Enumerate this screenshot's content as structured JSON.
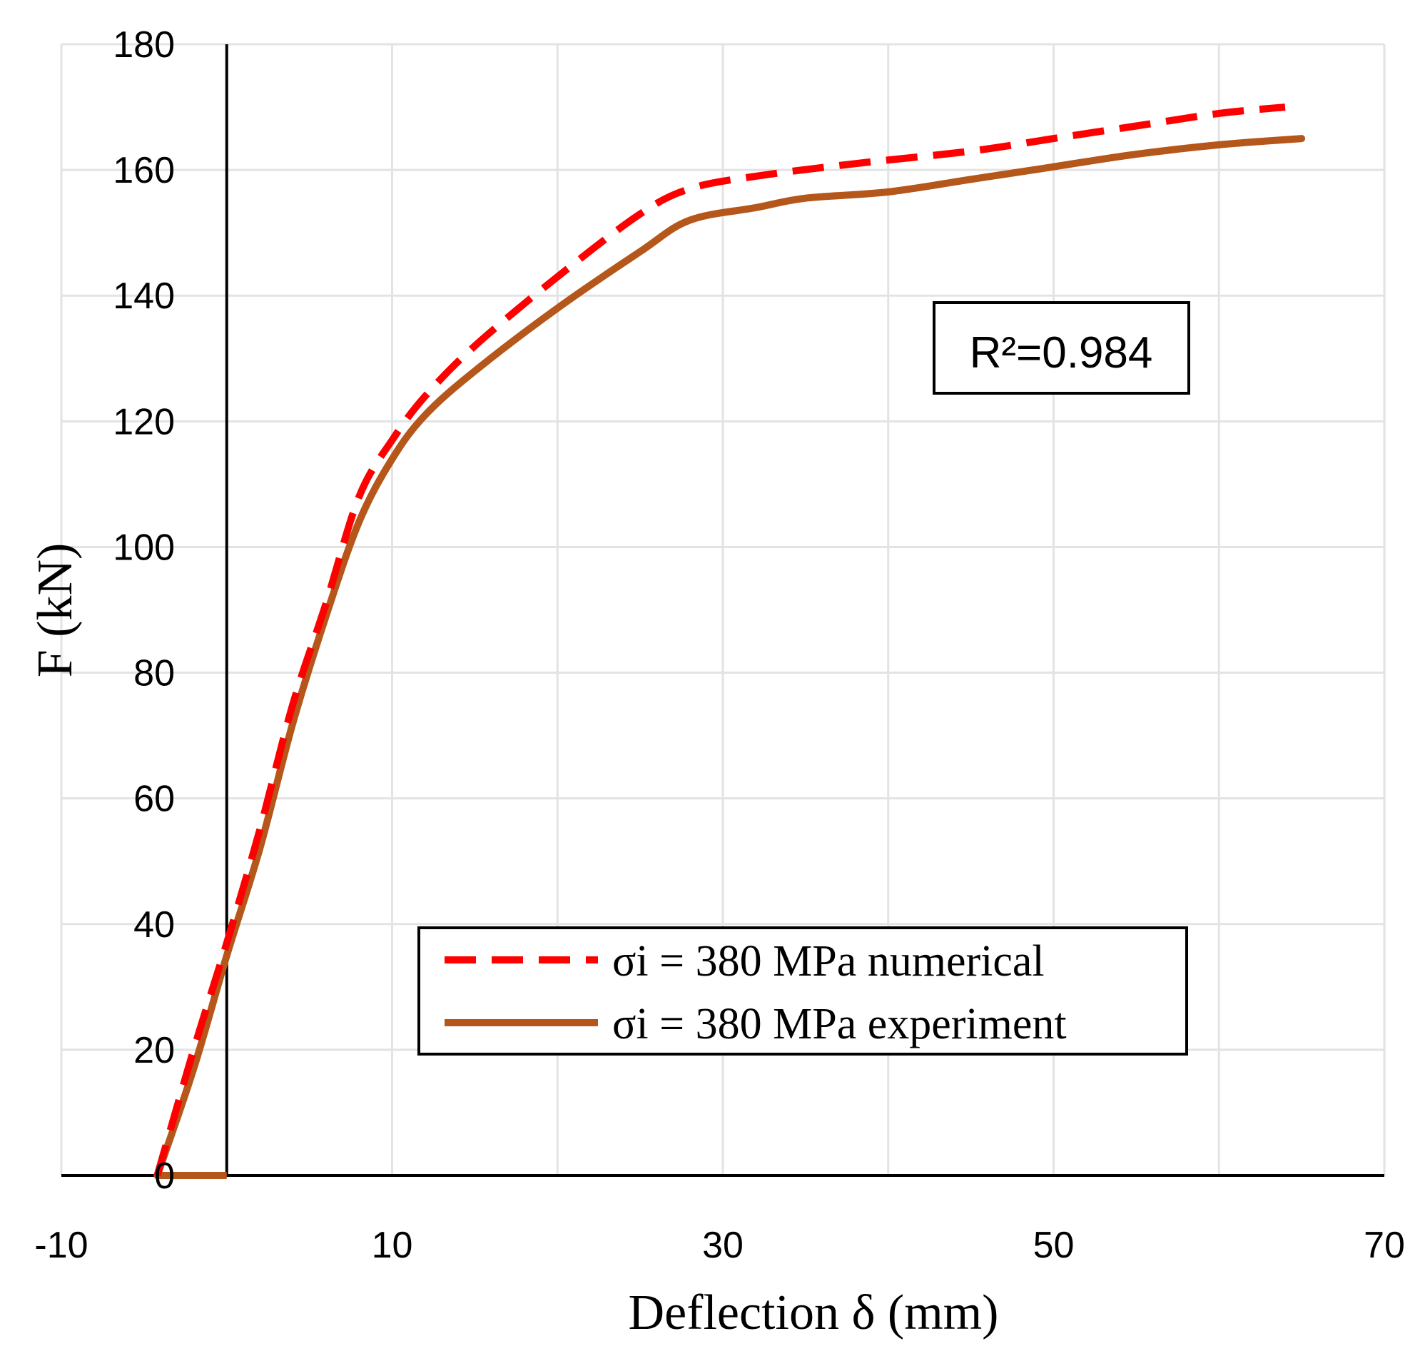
{
  "chart_data": {
    "type": "line",
    "xlabel": "Deflection δ (mm)",
    "ylabel": "F (kN)",
    "xlim": [
      -10,
      70
    ],
    "ylim": [
      0,
      180
    ],
    "x_ticks": [
      -10,
      10,
      30,
      50,
      70
    ],
    "x_tick_labels": [
      "-10",
      "10",
      "30",
      "50",
      "70"
    ],
    "y_ticks": [
      0,
      20,
      40,
      60,
      80,
      100,
      120,
      140,
      160,
      180
    ],
    "y_tick_labels": [
      "0",
      "20",
      "40",
      "60",
      "80",
      "100",
      "120",
      "140",
      "160",
      "180"
    ],
    "grid": true,
    "legend_position": "bottom-center",
    "annotation": {
      "text": "R²=0.984"
    },
    "series": [
      {
        "name": "σi = 380 MPa numerical",
        "color": "#ff0000",
        "style": "dashed",
        "points": [
          [
            -4.2,
            0
          ],
          [
            -2,
            20
          ],
          [
            0,
            37
          ],
          [
            2,
            55
          ],
          [
            4,
            75
          ],
          [
            6,
            91
          ],
          [
            8,
            108
          ],
          [
            10,
            117
          ],
          [
            12,
            124
          ],
          [
            15,
            132
          ],
          [
            20,
            143
          ],
          [
            25,
            153
          ],
          [
            28,
            157
          ],
          [
            32,
            159
          ],
          [
            38,
            161
          ],
          [
            45,
            163
          ],
          [
            50,
            165
          ],
          [
            55,
            167
          ],
          [
            60,
            169
          ],
          [
            64,
            170
          ]
        ]
      },
      {
        "name": "σi = 380 MPa experiment",
        "color": "#b5561a",
        "style": "solid",
        "points": [
          [
            -4.2,
            0
          ],
          [
            0,
            0
          ]
        ],
        "points_curve": [
          [
            -4.2,
            0
          ],
          [
            -2,
            17
          ],
          [
            0,
            35
          ],
          [
            2,
            52
          ],
          [
            4,
            72
          ],
          [
            6,
            89
          ],
          [
            8,
            104
          ],
          [
            10,
            114
          ],
          [
            12,
            121
          ],
          [
            15,
            128
          ],
          [
            20,
            138
          ],
          [
            25,
            147
          ],
          [
            28,
            152
          ],
          [
            32,
            154
          ],
          [
            35,
            155.5
          ],
          [
            40,
            156.5
          ],
          [
            45,
            158.5
          ],
          [
            50,
            160.5
          ],
          [
            55,
            162.5
          ],
          [
            60,
            164
          ],
          [
            65,
            165
          ]
        ]
      }
    ]
  }
}
